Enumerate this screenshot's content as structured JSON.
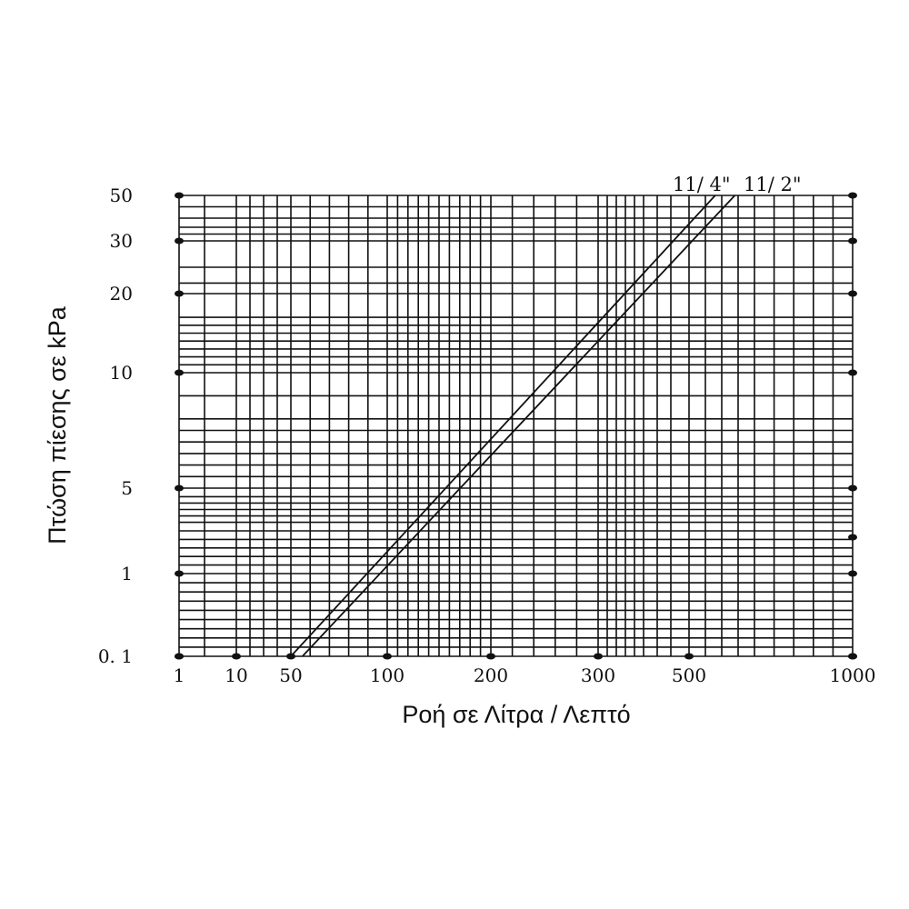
{
  "chart_data": {
    "type": "line",
    "title": "",
    "xlabel": "Ροή σε Λίτρα / Λεπτό",
    "ylabel": "Πτώση πίεσης σε kPa",
    "grid": true,
    "x_tick_labels": [
      "1",
      "10",
      "50",
      "100",
      "200",
      "300",
      "500",
      "1000"
    ],
    "y_tick_labels": [
      "0. 1",
      "1",
      "5",
      "10",
      "20",
      "30",
      "50"
    ],
    "x_ticks": [
      1,
      10,
      50,
      100,
      200,
      300,
      500,
      1000
    ],
    "y_ticks": [
      0.1,
      1,
      5,
      10,
      20,
      30,
      50
    ],
    "x_grid": [
      1,
      5,
      10,
      20,
      30,
      40,
      50,
      60,
      70,
      80,
      90,
      100,
      110,
      120,
      130,
      140,
      150,
      160,
      170,
      180,
      190,
      200,
      220,
      240,
      260,
      280,
      300,
      320,
      340,
      360,
      380,
      400,
      430,
      460,
      500,
      550,
      600,
      650,
      700,
      760,
      820,
      880,
      940,
      1000
    ],
    "y_grid": [
      0.1,
      0.2,
      0.3,
      0.4,
      0.5,
      0.6,
      0.7,
      0.8,
      0.9,
      1,
      1.4,
      1.8,
      2.2,
      2.6,
      3,
      3.4,
      3.7,
      4,
      4.3,
      4.6,
      5,
      5.5,
      6,
      6.5,
      7,
      7.5,
      8,
      9,
      10,
      11,
      12,
      13,
      14,
      15,
      16,
      17,
      20,
      22,
      25,
      30,
      33,
      36,
      40,
      45,
      50
    ],
    "series": [
      {
        "name": "11/ 4\"",
        "x": [
          50,
          580
        ],
        "y": [
          0.1,
          50
        ]
      },
      {
        "name": "11/ 2\"",
        "x": [
          56,
          640
        ],
        "y": [
          0.1,
          50
        ]
      }
    ]
  }
}
